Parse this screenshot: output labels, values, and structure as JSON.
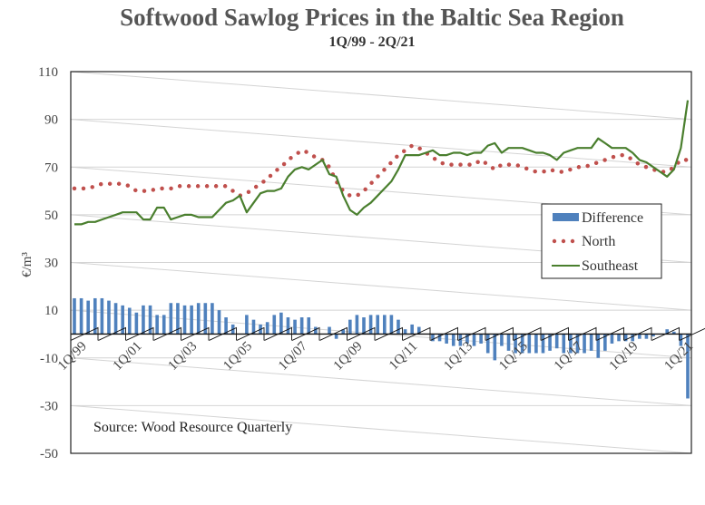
{
  "chart_data": {
    "type": "bar+line",
    "title": "Softwood Sawlog Prices in the Baltic Sea Region",
    "subtitle": "1Q/99 - 2Q/21",
    "ylabel": "€/m³",
    "ylim": [
      -50,
      110
    ],
    "yticks": [
      110,
      90,
      70,
      50,
      30,
      10,
      -10,
      -30,
      -50
    ],
    "xlabel": "",
    "x_tick_labels": [
      "1Q/99",
      "1Q/01",
      "1Q/03",
      "1Q/05",
      "1Q/07",
      "1Q/09",
      "1Q/11",
      "1Q/13",
      "1Q/15",
      "1Q/17",
      "1Q/19",
      "1Q/21"
    ],
    "x_range": [
      "1Q/99",
      "2Q/21"
    ],
    "grid": true,
    "legend_placement": "right",
    "annotation": "Source: Wood Resource Quarterly",
    "series": [
      {
        "name": "Difference",
        "type": "bar",
        "color": "#4f81bd",
        "values": [
          15,
          15,
          14,
          15,
          15,
          14,
          13,
          12,
          11,
          9,
          12,
          12,
          8,
          8,
          13,
          13,
          12,
          12,
          13,
          13,
          13,
          10,
          7,
          4,
          0,
          8,
          6,
          4,
          5,
          8,
          9,
          7,
          6,
          7,
          7,
          3,
          0,
          3,
          -2,
          2,
          6,
          8,
          7,
          8,
          8,
          8,
          8,
          6,
          2,
          4,
          3,
          0,
          -3,
          -3,
          -4,
          -5,
          -5,
          -4,
          -5,
          -4,
          -8,
          -11,
          -5,
          -7,
          -8,
          -8,
          -8,
          -8,
          -8,
          -7,
          -6,
          -8,
          -8,
          -8,
          -8,
          -7,
          -10,
          -7,
          -4,
          -3,
          -3,
          -3,
          -2,
          -2,
          -1,
          0,
          2,
          1,
          -5,
          -27
        ]
      },
      {
        "name": "North",
        "type": "line-dotted",
        "color": "#c0504d",
        "values": [
          61,
          61,
          61,
          62,
          63,
          63,
          63,
          63,
          62,
          60,
          60,
          60,
          61,
          61,
          61,
          62,
          62,
          62,
          62,
          62,
          62,
          62,
          62,
          60,
          58,
          59,
          61,
          63,
          65,
          68,
          70,
          73,
          75,
          77,
          76,
          74,
          73,
          70,
          64,
          60,
          58,
          58,
          60,
          63,
          66,
          69,
          72,
          75,
          77,
          79,
          78,
          76,
          74,
          72,
          71,
          71,
          71,
          71,
          71,
          73,
          71,
          69,
          71,
          71,
          71,
          70,
          69,
          68,
          68,
          69,
          68,
          68,
          69,
          70,
          70,
          71,
          72,
          73,
          74,
          75,
          75,
          73,
          71,
          70,
          69,
          68,
          68,
          70,
          73,
          73
        ]
      },
      {
        "name": "Southeast",
        "type": "line",
        "color": "#4a7f2e",
        "values": [
          46,
          46,
          47,
          47,
          48,
          49,
          50,
          51,
          51,
          51,
          48,
          48,
          53,
          53,
          48,
          49,
          50,
          50,
          49,
          49,
          49,
          52,
          55,
          56,
          58,
          51,
          55,
          59,
          60,
          60,
          61,
          66,
          69,
          70,
          69,
          71,
          73,
          67,
          66,
          58,
          52,
          50,
          53,
          55,
          58,
          61,
          64,
          69,
          75,
          75,
          75,
          76,
          77,
          75,
          75,
          76,
          76,
          75,
          76,
          76,
          79,
          80,
          76,
          78,
          78,
          78,
          77,
          76,
          76,
          75,
          73,
          76,
          77,
          78,
          78,
          78,
          82,
          80,
          78,
          78,
          78,
          76,
          73,
          72,
          70,
          68,
          66,
          69,
          78,
          98
        ]
      }
    ]
  }
}
